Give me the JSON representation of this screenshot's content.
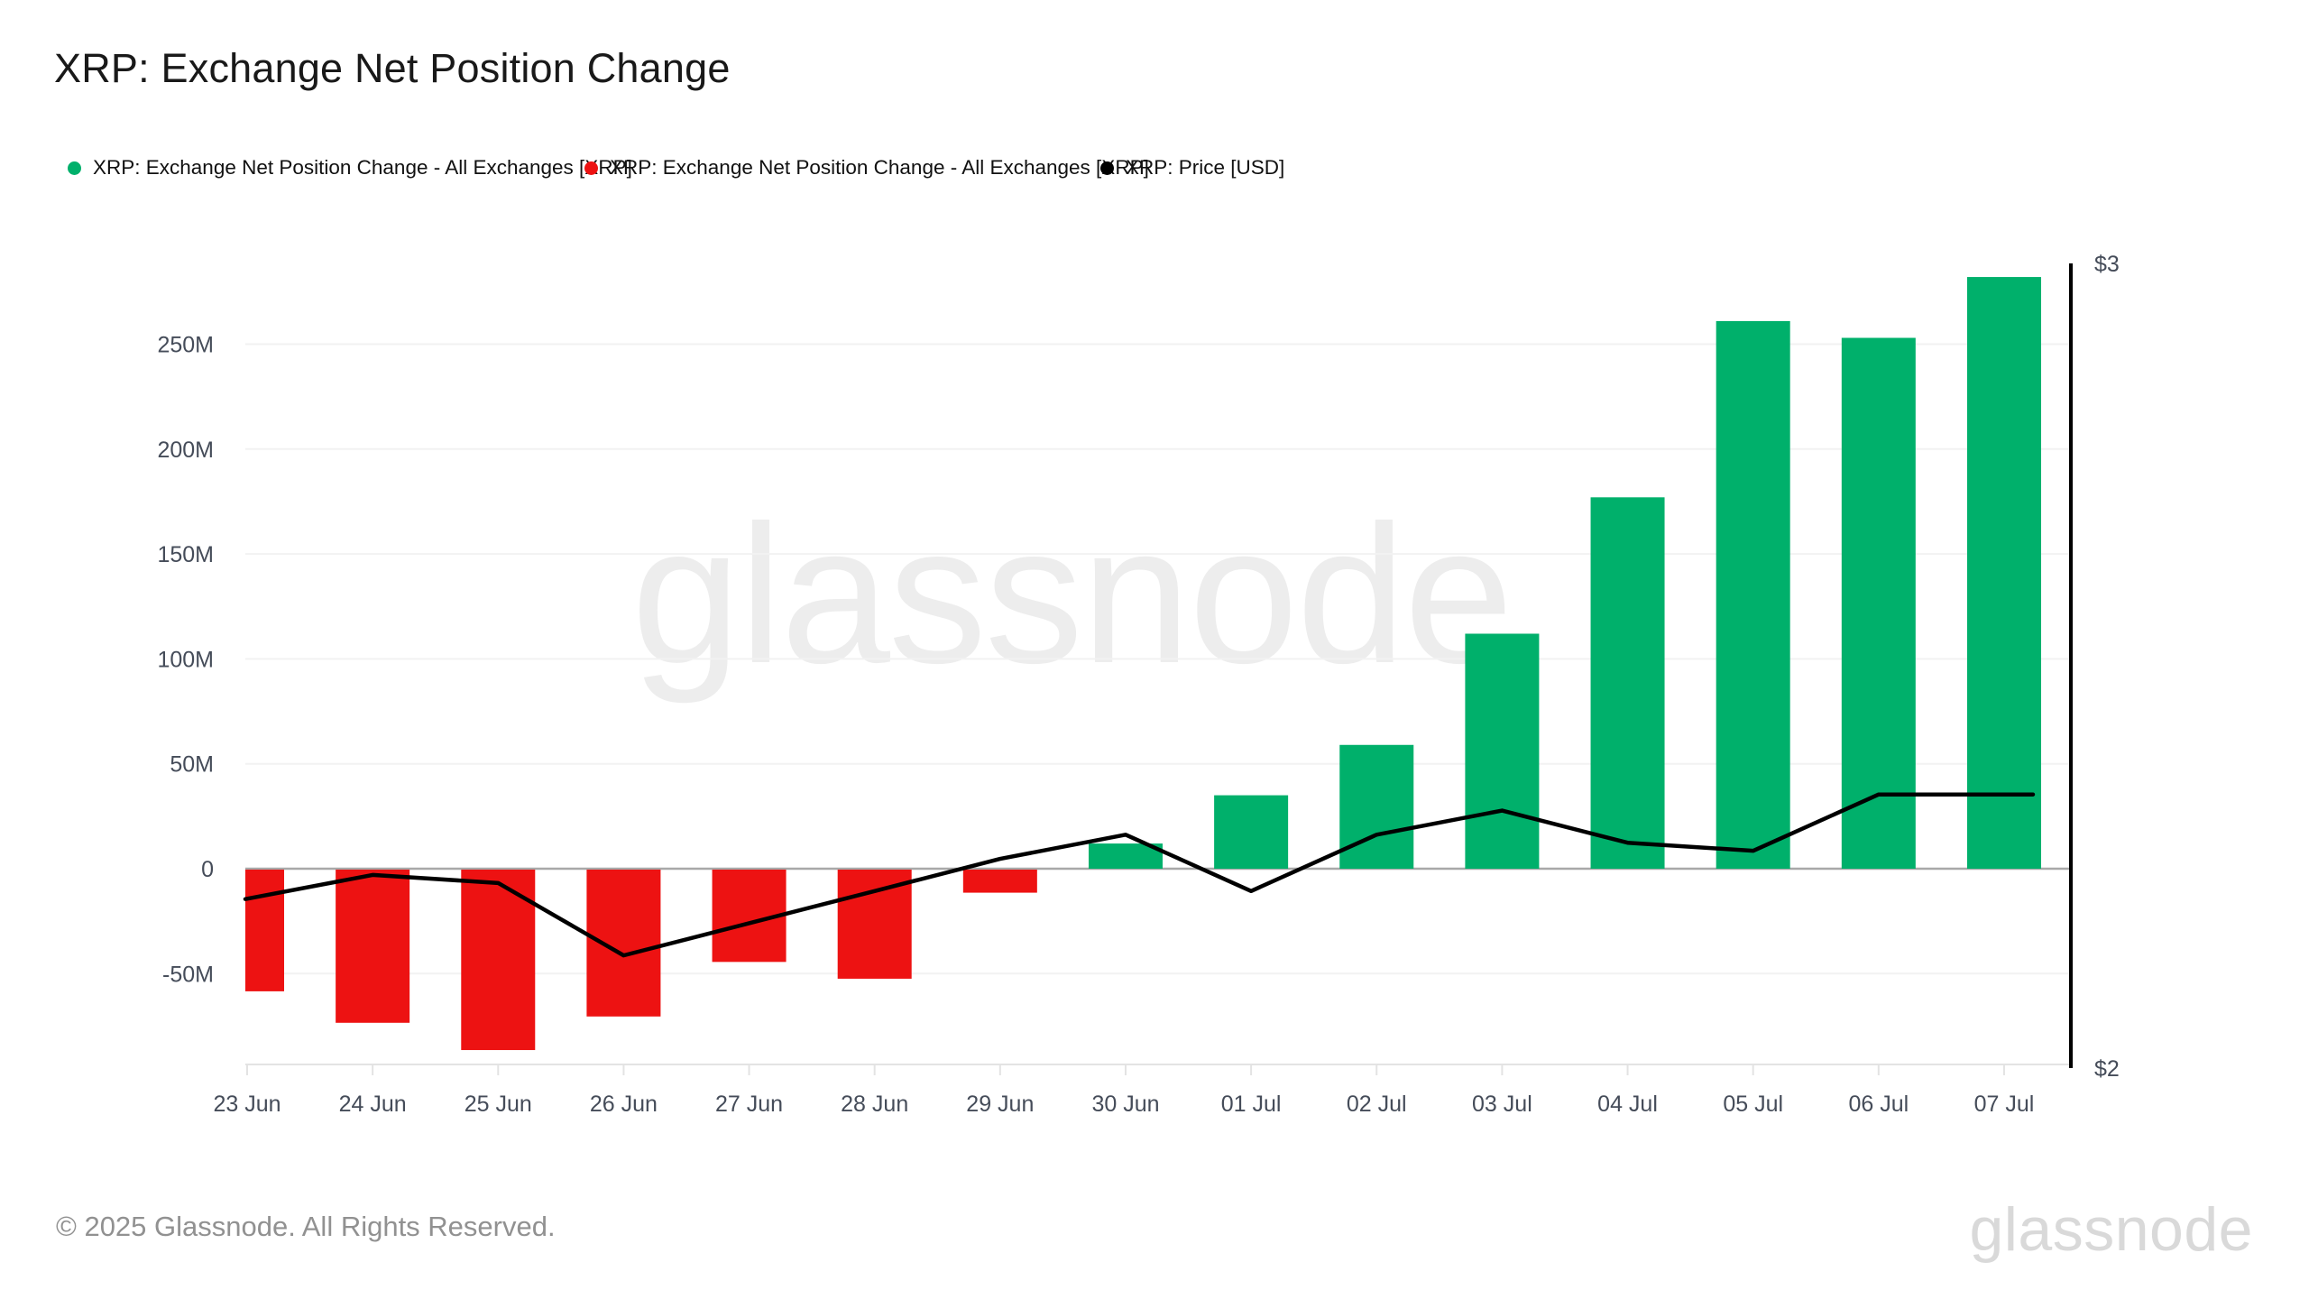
{
  "title": "XRP: Exchange Net Position Change",
  "legend": {
    "items": [
      {
        "label": "XRP: Exchange Net Position Change - All Exchanges [XRP]",
        "color": "#00b06b",
        "marker": "circle"
      },
      {
        "label": "XRP: Exchange Net Position Change - All Exchanges [XRP]",
        "color": "#ed1212",
        "marker": "circle"
      },
      {
        "label": "XRP: Price [USD]",
        "color": "#000000",
        "marker": "circle"
      }
    ]
  },
  "watermark_text": "glassnode",
  "footer": {
    "copyright": "© 2025 Glassnode. All Rights Reserved.",
    "logo_text": "glassnode"
  },
  "colors": {
    "positive_bar": "#00b06b",
    "negative_bar": "#ed1212",
    "price_line": "#000000",
    "zero_line": "#a8a8a8",
    "gridline": "#f2f2f2",
    "axis_bottom": "#e3e3e3",
    "tick_label": "#454c59",
    "right_axis_line": "#000000"
  },
  "chart_data": {
    "type": "bar",
    "title": "XRP: Exchange Net Position Change",
    "categories": [
      "23 Jun",
      "24 Jun",
      "25 Jun",
      "26 Jun",
      "27 Jun",
      "28 Jun",
      "29 Jun",
      "30 Jun",
      "01 Jul",
      "02 Jul",
      "03 Jul",
      "04 Jul",
      "05 Jul",
      "06 Jul",
      "07 Jul"
    ],
    "series": [
      {
        "name": "XRP: Exchange Net Position Change - All Exchanges [XRP]",
        "type": "bar",
        "unit": "XRP (millions)",
        "values": [
          -58,
          -73,
          -86,
          -70,
          -44,
          -52,
          -11,
          12,
          35,
          59,
          112,
          177,
          261,
          253,
          282
        ]
      },
      {
        "name": "XRP: Price [USD]",
        "type": "line",
        "unit": "USD",
        "values": [
          2.21,
          2.24,
          2.23,
          2.14,
          2.18,
          2.22,
          2.26,
          2.29,
          2.22,
          2.29,
          2.32,
          2.28,
          2.27,
          2.34,
          2.34
        ]
      }
    ],
    "left_axis": {
      "tick_labels": [
        "250M",
        "200M",
        "150M",
        "100M",
        "50M",
        "0",
        "-50M"
      ],
      "tick_values_millions": [
        250,
        200,
        150,
        100,
        50,
        0,
        -50
      ],
      "range_millions": [
        -93,
        290
      ]
    },
    "right_axis": {
      "tick_labels": [
        "$3",
        "$2"
      ],
      "min": 2,
      "max": 3
    },
    "grid": "horizontal",
    "legend_position": "top-left"
  }
}
